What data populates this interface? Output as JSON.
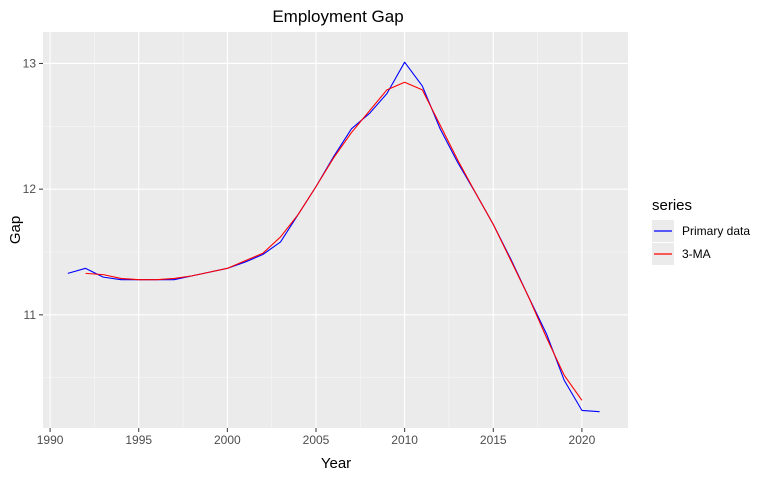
{
  "chart_data": {
    "type": "line",
    "title": "Employment Gap",
    "xlabel": "Year",
    "ylabel": "Gap",
    "xlim": [
      1989.6,
      2022.6
    ],
    "ylim": [
      10.1,
      13.25
    ],
    "x_ticks": [
      1990,
      1995,
      2000,
      2005,
      2010,
      2015,
      2020
    ],
    "x_tick_labels": [
      "1990",
      "1995",
      "2000",
      "2005",
      "2010",
      "2015",
      "2020"
    ],
    "y_ticks": [
      11,
      12,
      13
    ],
    "y_tick_labels": [
      "11",
      "12",
      "13"
    ],
    "grid": true,
    "legend": {
      "title": "series",
      "position": "right"
    },
    "series": [
      {
        "name": "Primary data",
        "color": "#0000ff",
        "x": [
          1991,
          1992,
          1993,
          1994,
          1995,
          1996,
          1997,
          1998,
          1999,
          2000,
          2001,
          2002,
          2003,
          2004,
          2005,
          2006,
          2007,
          2008,
          2009,
          2010,
          2011,
          2012,
          2013,
          2014,
          2015,
          2016,
          2017,
          2018,
          2019,
          2020,
          2021
        ],
        "y": [
          11.33,
          11.37,
          11.3,
          11.28,
          11.28,
          11.28,
          11.28,
          11.31,
          11.34,
          11.37,
          11.42,
          11.48,
          11.58,
          11.8,
          12.02,
          12.26,
          12.48,
          12.6,
          12.76,
          13.01,
          12.82,
          12.48,
          12.21,
          11.97,
          11.72,
          11.44,
          11.14,
          10.85,
          10.48,
          10.24,
          10.23
        ]
      },
      {
        "name": "3-MA",
        "color": "#ff0000",
        "x": [
          1992,
          1993,
          1994,
          1995,
          1996,
          1997,
          1998,
          1999,
          2000,
          2001,
          2002,
          2003,
          2004,
          2005,
          2006,
          2007,
          2008,
          2009,
          2010,
          2011,
          2012,
          2013,
          2014,
          2015,
          2016,
          2017,
          2018,
          2019,
          2020
        ],
        "y": [
          11.33,
          11.32,
          11.29,
          11.28,
          11.28,
          11.29,
          11.31,
          11.34,
          11.37,
          11.43,
          11.49,
          11.62,
          11.8,
          12.02,
          12.25,
          12.45,
          12.62,
          12.79,
          12.85,
          12.79,
          12.51,
          12.23,
          11.97,
          11.72,
          11.43,
          11.14,
          10.82,
          10.52,
          10.32
        ]
      }
    ]
  }
}
